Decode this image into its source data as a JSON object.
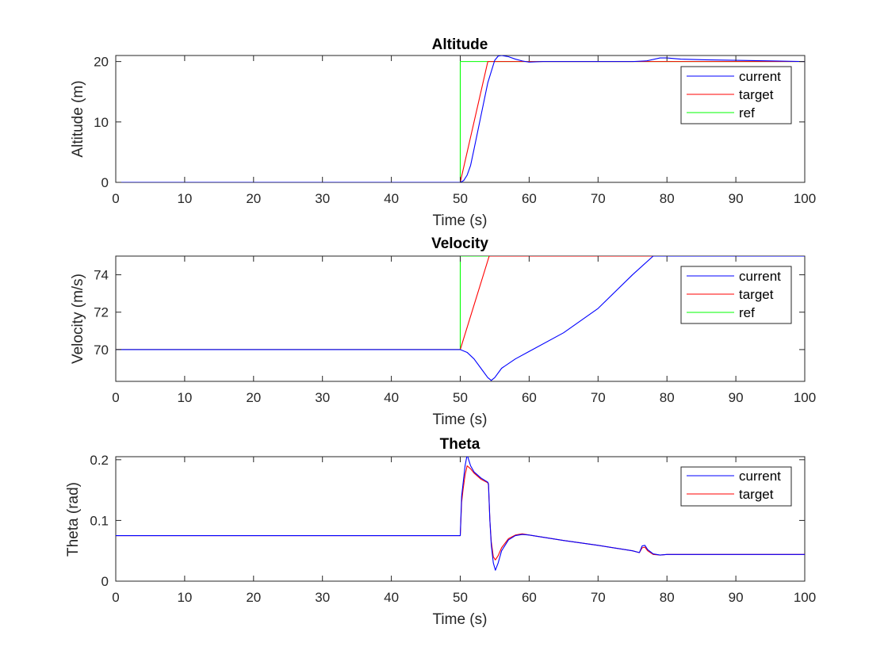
{
  "chart_data": [
    {
      "type": "line",
      "title": "Altitude",
      "xlabel": "Time (s)",
      "ylabel": "Altitude (m)",
      "xlim": [
        0,
        100
      ],
      "ylim": [
        0,
        21
      ],
      "xticks": [
        0,
        10,
        20,
        30,
        40,
        50,
        60,
        70,
        80,
        90,
        100
      ],
      "yticks": [
        0,
        10,
        20
      ],
      "legend_position": "top-right",
      "series": [
        {
          "name": "current",
          "color": "#0000ff",
          "x": [
            0,
            50,
            50.5,
            51,
            51.5,
            52,
            53,
            54,
            55,
            55.5,
            56,
            57,
            58,
            59,
            60,
            62,
            65,
            70,
            75,
            77,
            79,
            80,
            82,
            85,
            90,
            95,
            100
          ],
          "y": [
            0,
            0,
            0.3,
            1.2,
            2.8,
            5.5,
            11,
            16.5,
            20.2,
            20.9,
            21.0,
            20.8,
            20.4,
            20.1,
            19.9,
            20.0,
            20.0,
            20.0,
            20.0,
            20.1,
            20.6,
            20.6,
            20.4,
            20.3,
            20.2,
            20.1,
            20.0
          ]
        },
        {
          "name": "target",
          "color": "#ff0000",
          "x": [
            0,
            50,
            54,
            54.2,
            100
          ],
          "y": [
            0,
            0,
            20,
            20,
            20
          ]
        },
        {
          "name": "ref",
          "color": "#00ff00",
          "x": [
            0,
            50,
            50,
            100
          ],
          "y": [
            0,
            0,
            20,
            20
          ]
        }
      ]
    },
    {
      "type": "line",
      "title": "Velocity",
      "xlabel": "Time (s)",
      "ylabel": "Velocity (m/s)",
      "xlim": [
        0,
        100
      ],
      "ylim": [
        68.3,
        75
      ],
      "xticks": [
        0,
        10,
        20,
        30,
        40,
        50,
        60,
        70,
        80,
        90,
        100
      ],
      "yticks": [
        70,
        72,
        74
      ],
      "legend_position": "top-right",
      "series": [
        {
          "name": "current",
          "color": "#0000ff",
          "x": [
            0,
            50,
            51,
            52,
            53,
            54,
            54.5,
            55,
            56,
            58,
            60,
            65,
            70,
            75,
            78,
            80,
            90,
            100
          ],
          "y": [
            70,
            70,
            69.85,
            69.5,
            69.0,
            68.5,
            68.35,
            68.5,
            69.0,
            69.5,
            69.9,
            70.9,
            72.2,
            74.0,
            75.0,
            75.0,
            75.0,
            75.0
          ]
        },
        {
          "name": "target",
          "color": "#ff0000",
          "x": [
            0,
            50,
            54.2,
            100
          ],
          "y": [
            70,
            70,
            75,
            75
          ]
        },
        {
          "name": "ref",
          "color": "#00ff00",
          "x": [
            0,
            50,
            50,
            100
          ],
          "y": [
            70,
            70,
            75,
            75
          ]
        }
      ]
    },
    {
      "type": "line",
      "title": "Theta",
      "xlabel": "Time (s)",
      "ylabel": "Theta (rad)",
      "xlim": [
        0,
        100
      ],
      "ylim": [
        0,
        0.205
      ],
      "xticks": [
        0,
        10,
        20,
        30,
        40,
        50,
        60,
        70,
        80,
        90,
        100
      ],
      "yticks": [
        0,
        0.1,
        0.2
      ],
      "legend_position": "top-right",
      "series": [
        {
          "name": "current",
          "color": "#0000ff",
          "x": [
            0,
            50,
            50.2,
            50.4,
            50.7,
            51,
            51.5,
            52,
            53,
            54,
            54.1,
            54.3,
            54.5,
            54.8,
            55.1,
            55.5,
            56,
            57,
            58,
            59,
            60,
            65,
            70,
            75,
            76,
            76.4,
            76.8,
            77.2,
            78,
            79,
            80,
            85,
            90,
            100
          ],
          "y": [
            0.075,
            0.075,
            0.14,
            0.16,
            0.19,
            0.208,
            0.19,
            0.18,
            0.17,
            0.163,
            0.16,
            0.1,
            0.06,
            0.03,
            0.018,
            0.03,
            0.05,
            0.068,
            0.075,
            0.077,
            0.076,
            0.067,
            0.059,
            0.05,
            0.047,
            0.058,
            0.059,
            0.052,
            0.045,
            0.043,
            0.044,
            0.044,
            0.044,
            0.044
          ]
        },
        {
          "name": "target",
          "color": "#ff0000",
          "x": [
            0,
            50,
            50.2,
            50.4,
            50.7,
            51,
            51.5,
            52,
            53,
            54,
            54.1,
            54.3,
            54.5,
            54.8,
            55.1,
            55.5,
            56,
            57,
            58,
            59,
            60,
            65,
            70,
            75,
            76,
            76.4,
            76.8,
            77.2,
            78,
            79,
            80,
            85,
            90,
            100
          ],
          "y": [
            0.075,
            0.075,
            0.13,
            0.15,
            0.175,
            0.19,
            0.185,
            0.178,
            0.168,
            0.162,
            0.158,
            0.1,
            0.065,
            0.04,
            0.035,
            0.042,
            0.055,
            0.07,
            0.076,
            0.078,
            0.076,
            0.067,
            0.059,
            0.05,
            0.047,
            0.055,
            0.056,
            0.05,
            0.044,
            0.043,
            0.044,
            0.044,
            0.044,
            0.044
          ]
        }
      ]
    }
  ]
}
